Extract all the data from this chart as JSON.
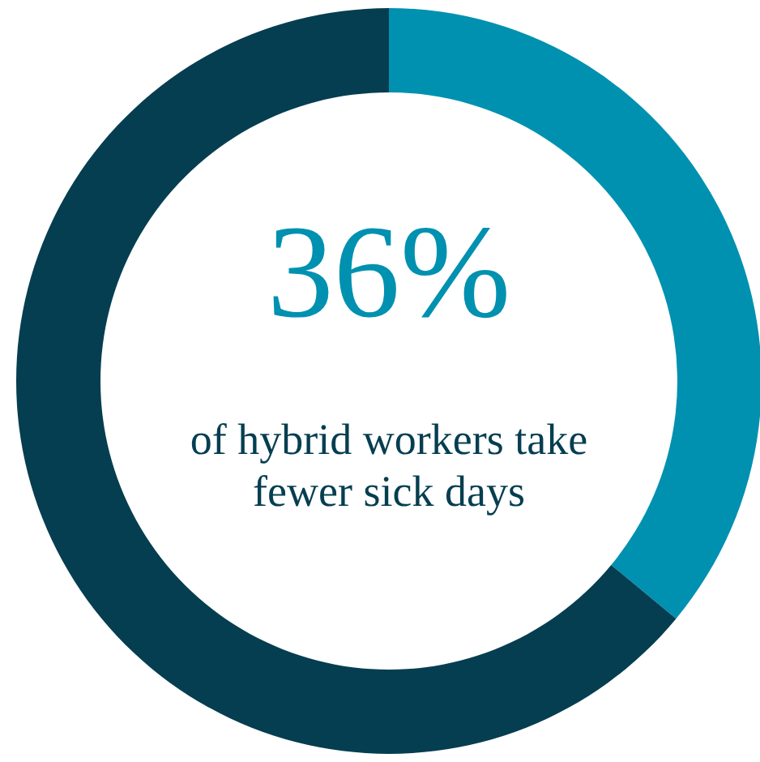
{
  "chart_data": {
    "type": "donut",
    "categories": [
      null,
      null
    ],
    "values": [
      36,
      64
    ],
    "colors": [
      "#0091b0",
      "#053e50"
    ],
    "annotations": [
      "36%",
      "of hybrid workers take\nfewer sick days"
    ]
  }
}
